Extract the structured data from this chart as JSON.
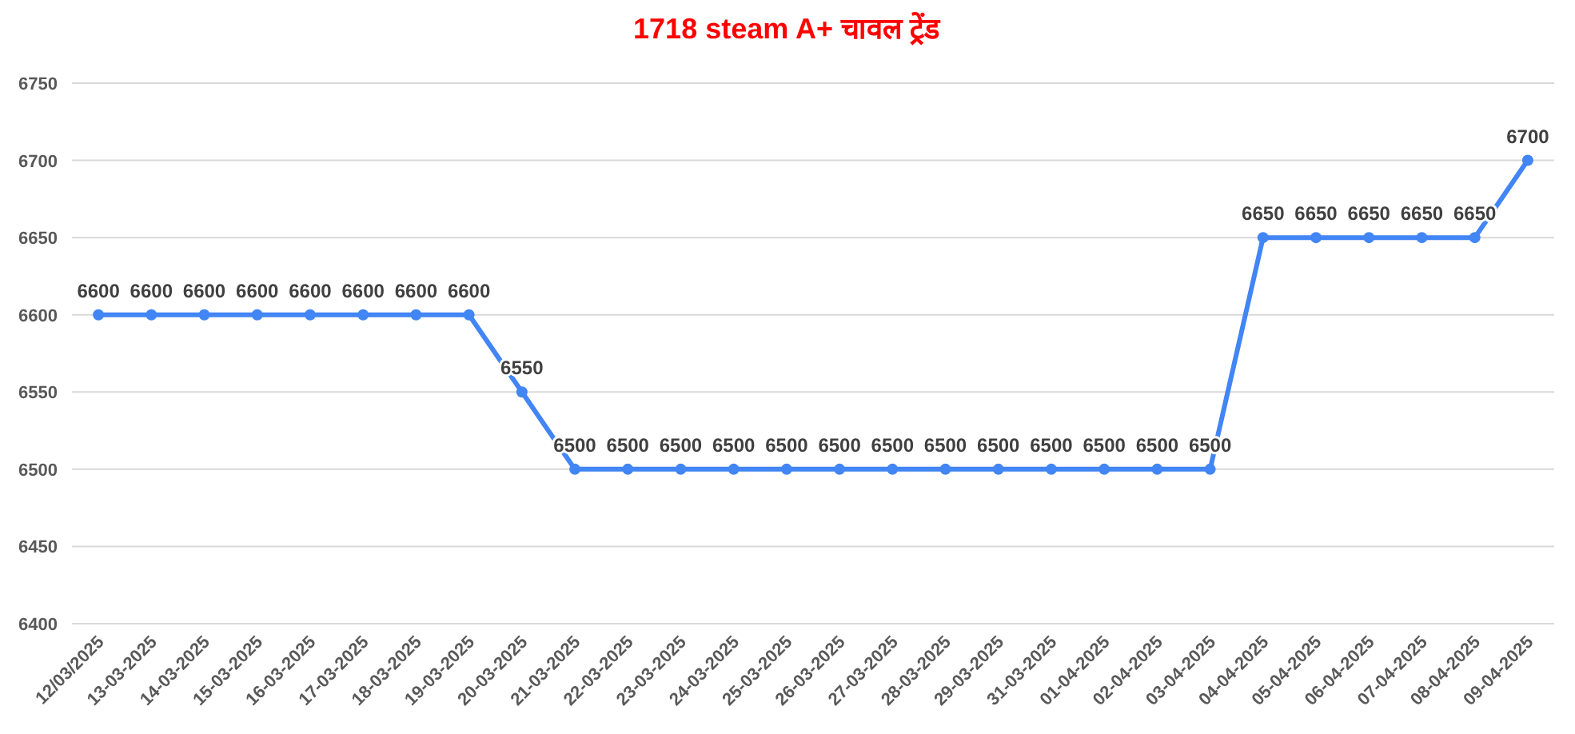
{
  "chart_data": {
    "type": "line",
    "title": "1718 steam A+ चावल ट्रेंड",
    "categories": [
      "12/03/2025",
      "13-03-2025",
      "14-03-2025",
      "15-03-2025",
      "16-03-2025",
      "17-03-2025",
      "18-03-2025",
      "19-03-2025",
      "20-03-2025",
      "21-03-2025",
      "22-03-2025",
      "23-03-2025",
      "24-03-2025",
      "25-03-2025",
      "26-03-2025",
      "27-03-2025",
      "28-03-2025",
      "29-03-2025",
      "31-03-2025",
      "01-04-2025",
      "02-04-2025",
      "03-04-2025",
      "04-04-2025",
      "05-04-2025",
      "06-04-2025",
      "07-04-2025",
      "08-04-2025",
      "09-04-2025"
    ],
    "series": [
      {
        "color": "#4285f4",
        "values": [
          6600,
          6600,
          6600,
          6600,
          6600,
          6600,
          6600,
          6600,
          6550,
          6500,
          6500,
          6500,
          6500,
          6500,
          6500,
          6500,
          6500,
          6500,
          6500,
          6500,
          6500,
          6500,
          6650,
          6650,
          6650,
          6650,
          6650,
          6700
        ]
      }
    ],
    "ylim": [
      6400,
      6750
    ],
    "yticks": [
      6400,
      6450,
      6500,
      6550,
      6600,
      6650,
      6700,
      6750
    ],
    "grid": "y",
    "marker": "circle",
    "line_style": "solid",
    "data_labels": true
  }
}
